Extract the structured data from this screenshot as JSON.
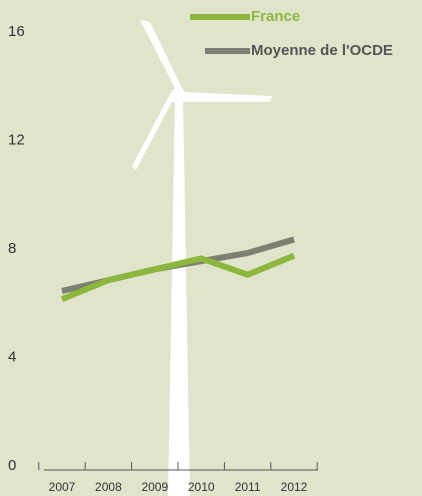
{
  "chart_data": {
    "type": "line",
    "categories": [
      "2007",
      "2008",
      "2009",
      "2010",
      "2011",
      "2012"
    ],
    "series": [
      {
        "name": "France",
        "color": "#8cb63c",
        "values": [
          6.3,
          7.0,
          7.4,
          7.8,
          7.2,
          7.9
        ]
      },
      {
        "name": "Moyenne de l'OCDE",
        "color": "#7b8070",
        "values": [
          6.6,
          7.0,
          7.4,
          7.7,
          8.0,
          8.5
        ]
      }
    ],
    "ylim": [
      0,
      16
    ],
    "yticks": [
      0,
      4,
      8,
      12,
      16
    ],
    "legend": "top-right"
  }
}
